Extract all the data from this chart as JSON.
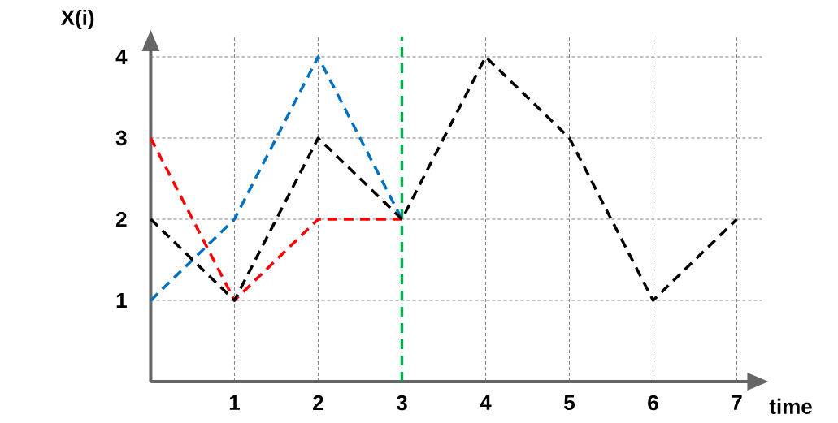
{
  "chart_data": {
    "type": "line",
    "xlabel": "time",
    "ylabel": "X(i)",
    "x": [
      0,
      1,
      2,
      3,
      4,
      5,
      6,
      7
    ],
    "series": [
      {
        "color": "#ff0000",
        "values": [
          3,
          1,
          2,
          2,
          null,
          null,
          null,
          null
        ]
      },
      {
        "color": "#0070c0",
        "values": [
          1,
          2,
          4,
          2,
          null,
          null,
          null,
          null
        ]
      },
      {
        "color": "#000000",
        "values": [
          2,
          1,
          3,
          2,
          4,
          3,
          1,
          2
        ]
      }
    ],
    "xlim": [
      0,
      7.3
    ],
    "ylim": [
      0,
      4.25
    ],
    "xticks": [
      1,
      2,
      3,
      4,
      5,
      6,
      7
    ],
    "yticks": [
      1,
      2,
      3,
      4
    ],
    "grid": true,
    "marker": "none",
    "line_style": "dashed",
    "ref_lines": [
      {
        "axis": "x",
        "value": 3,
        "color": "#00b050",
        "line_style": "dashed"
      }
    ]
  }
}
